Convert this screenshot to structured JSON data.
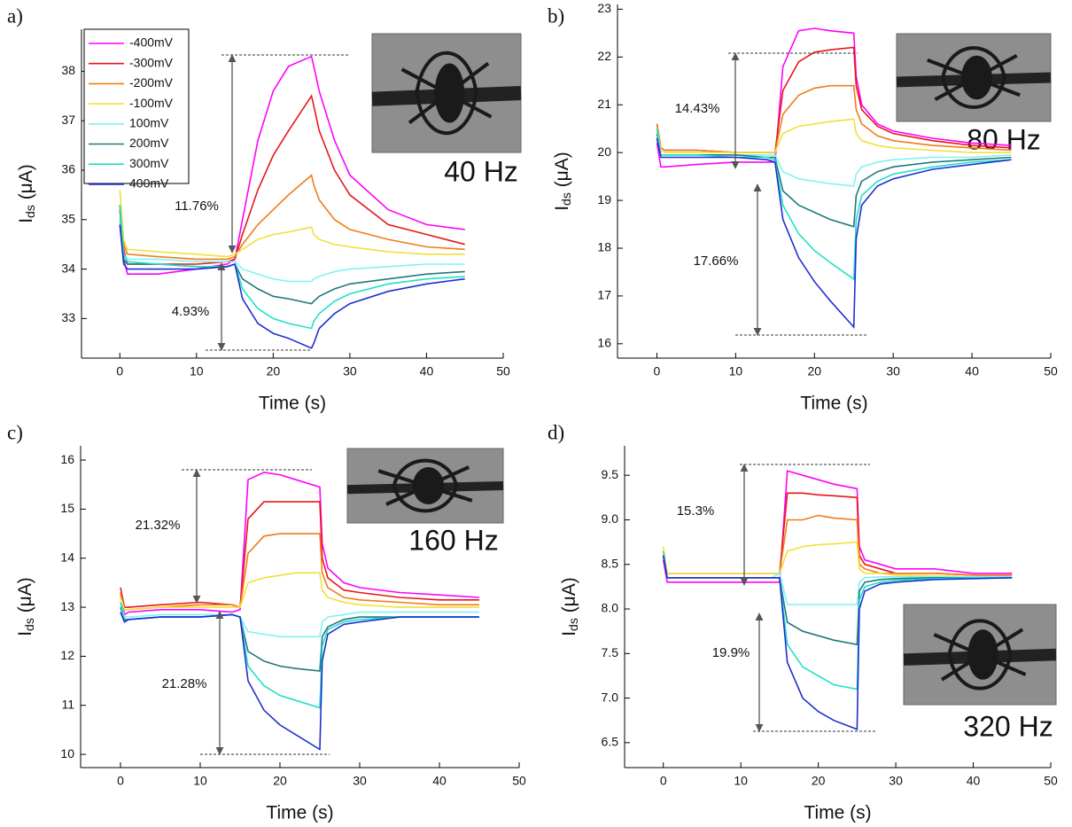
{
  "chart_data": [
    {
      "type": "line",
      "panel_label": "a)",
      "frequency": "40 Hz",
      "annotations": [
        "11.76%",
        "4.93%"
      ],
      "legend": "upper left",
      "xlabel": "Time (s)",
      "ylabel": [
        "I",
        "ds",
        " (μA)"
      ],
      "xlim": [
        -5,
        50
      ],
      "xticks": [
        0,
        10,
        20,
        30,
        40,
        50
      ],
      "ylim": [
        32.2,
        38.85
      ],
      "yticks": [
        33,
        34,
        35,
        36,
        37,
        38
      ],
      "x": [
        0,
        0.5,
        1,
        5,
        10,
        14,
        15,
        16,
        18,
        20,
        22,
        25,
        25.3,
        26,
        28,
        30,
        35,
        40,
        45
      ],
      "series": [
        {
          "name": "-400mV",
          "color": "#ff00ff",
          "values": [
            34.9,
            34.2,
            33.9,
            33.9,
            34.0,
            34.1,
            34.2,
            35.0,
            36.6,
            37.6,
            38.1,
            38.3,
            38.1,
            37.6,
            36.6,
            35.9,
            35.2,
            34.9,
            34.8
          ]
        },
        {
          "name": "-300mV",
          "color": "#e8161b",
          "values": [
            35.3,
            34.4,
            34.1,
            34.1,
            34.1,
            34.15,
            34.2,
            34.7,
            35.6,
            36.3,
            36.8,
            37.5,
            37.3,
            36.8,
            36.0,
            35.5,
            34.9,
            34.7,
            34.5
          ]
        },
        {
          "name": "-200mV",
          "color": "#f07c18",
          "values": [
            35.2,
            34.5,
            34.3,
            34.25,
            34.2,
            34.2,
            34.25,
            34.5,
            34.9,
            35.2,
            35.5,
            35.9,
            35.7,
            35.4,
            35.0,
            34.8,
            34.6,
            34.45,
            34.4
          ]
        },
        {
          "name": "-100mV",
          "color": "#f2e03a",
          "values": [
            35.6,
            34.6,
            34.4,
            34.35,
            34.3,
            34.25,
            34.3,
            34.4,
            34.6,
            34.7,
            34.75,
            34.85,
            34.7,
            34.6,
            34.5,
            34.45,
            34.35,
            34.3,
            34.3
          ]
        },
        {
          "name": "100mV",
          "color": "#80f2f2",
          "values": [
            35.0,
            34.3,
            34.2,
            34.2,
            34.15,
            34.15,
            34.15,
            34.0,
            33.9,
            33.8,
            33.75,
            33.75,
            33.8,
            33.85,
            33.95,
            34.0,
            34.05,
            34.1,
            34.1
          ]
        },
        {
          "name": "200mV",
          "color": "#1f7a78",
          "values": [
            35.2,
            34.2,
            34.1,
            34.1,
            34.05,
            34.05,
            34.1,
            33.8,
            33.6,
            33.45,
            33.4,
            33.3,
            33.35,
            33.45,
            33.6,
            33.7,
            33.8,
            33.9,
            33.95
          ]
        },
        {
          "name": "300mV",
          "color": "#1fe0c8",
          "values": [
            35.3,
            34.3,
            34.15,
            34.1,
            34.05,
            34.05,
            34.1,
            33.6,
            33.2,
            33.0,
            32.9,
            32.8,
            32.95,
            33.1,
            33.35,
            33.5,
            33.7,
            33.8,
            33.85
          ]
        },
        {
          "name": "400mV",
          "color": "#1f2fd0",
          "values": [
            34.9,
            34.1,
            34.0,
            34.0,
            34.0,
            34.05,
            34.1,
            33.4,
            32.9,
            32.7,
            32.6,
            32.4,
            32.5,
            32.8,
            33.1,
            33.3,
            33.55,
            33.7,
            33.8
          ]
        }
      ]
    },
    {
      "type": "line",
      "panel_label": "b)",
      "frequency": "80 Hz",
      "annotations": [
        "14.43%",
        "17.66%"
      ],
      "xlabel": "Time (s)",
      "ylabel": [
        "I",
        "ds",
        " (μA)"
      ],
      "xlim": [
        -5,
        50
      ],
      "xticks": [
        0,
        10,
        20,
        30,
        40,
        50
      ],
      "ylim": [
        15.7,
        23.1
      ],
      "yticks": [
        16,
        17,
        18,
        19,
        20,
        21,
        22,
        23
      ],
      "x": [
        0,
        0.5,
        1,
        5,
        10,
        14,
        15,
        16,
        18,
        20,
        22,
        25,
        25.3,
        26,
        28,
        30,
        35,
        40,
        45
      ],
      "series": [
        {
          "color": "#ff00ff",
          "values": [
            20.2,
            19.7,
            19.7,
            19.75,
            19.8,
            19.8,
            19.8,
            21.8,
            22.55,
            22.6,
            22.55,
            22.5,
            21.6,
            21.0,
            20.6,
            20.45,
            20.3,
            20.2,
            20.15
          ]
        },
        {
          "color": "#e8161b",
          "values": [
            20.6,
            20.1,
            20.05,
            20.05,
            20.0,
            20.0,
            20.0,
            21.3,
            21.9,
            22.1,
            22.15,
            22.2,
            21.4,
            20.9,
            20.55,
            20.4,
            20.25,
            20.15,
            20.1
          ]
        },
        {
          "color": "#f07c18",
          "values": [
            20.6,
            20.1,
            20.05,
            20.05,
            20.0,
            20.0,
            20.0,
            20.8,
            21.2,
            21.35,
            21.4,
            21.4,
            20.9,
            20.6,
            20.35,
            20.25,
            20.15,
            20.1,
            20.05
          ]
        },
        {
          "color": "#f2e03a",
          "values": [
            20.5,
            20.05,
            20.0,
            20.0,
            20.0,
            20.0,
            20.0,
            20.4,
            20.55,
            20.6,
            20.65,
            20.7,
            20.4,
            20.25,
            20.15,
            20.1,
            20.05,
            20.0,
            20.0
          ]
        },
        {
          "color": "#80f2f2",
          "values": [
            20.3,
            19.95,
            19.95,
            19.95,
            19.95,
            19.95,
            19.95,
            19.6,
            19.45,
            19.4,
            19.35,
            19.3,
            19.55,
            19.7,
            19.8,
            19.85,
            19.9,
            19.9,
            19.95
          ]
        },
        {
          "color": "#1f7a78",
          "values": [
            20.4,
            19.95,
            19.95,
            19.95,
            19.95,
            19.9,
            19.9,
            19.2,
            18.9,
            18.75,
            18.6,
            18.45,
            19.1,
            19.4,
            19.6,
            19.7,
            19.8,
            19.85,
            19.9
          ]
        },
        {
          "color": "#1fe0c8",
          "values": [
            20.5,
            19.95,
            19.95,
            19.95,
            19.9,
            19.9,
            19.85,
            18.9,
            18.3,
            17.95,
            17.7,
            17.35,
            18.6,
            19.1,
            19.4,
            19.55,
            19.7,
            19.8,
            19.85
          ]
        },
        {
          "color": "#1f2fd0",
          "values": [
            20.3,
            19.9,
            19.9,
            19.9,
            19.9,
            19.85,
            19.8,
            18.6,
            17.8,
            17.3,
            16.9,
            16.35,
            18.2,
            18.9,
            19.3,
            19.45,
            19.65,
            19.75,
            19.85
          ]
        }
      ]
    },
    {
      "type": "line",
      "panel_label": "c)",
      "frequency": "160 Hz",
      "annotations": [
        "21.32%",
        "21.28%"
      ],
      "xlabel": "Time (s)",
      "ylabel": [
        "I",
        "ds",
        " (μA)"
      ],
      "xlim": [
        -5,
        50
      ],
      "xticks": [
        0,
        10,
        20,
        30,
        40,
        50
      ],
      "ylim": [
        9.73,
        16.29
      ],
      "yticks": [
        10,
        11,
        12,
        13,
        14,
        15,
        16
      ],
      "x": [
        0,
        0.5,
        1,
        5,
        10,
        14,
        15,
        16,
        18,
        20,
        22,
        25,
        25.3,
        26,
        28,
        30,
        35,
        40,
        45
      ],
      "series": [
        {
          "color": "#ff00ff",
          "values": [
            13.3,
            12.85,
            12.9,
            12.95,
            12.95,
            12.9,
            12.95,
            15.6,
            15.75,
            15.7,
            15.6,
            15.45,
            14.3,
            13.8,
            13.5,
            13.4,
            13.3,
            13.25,
            13.2
          ]
        },
        {
          "color": "#e8161b",
          "values": [
            13.4,
            13.0,
            13.0,
            13.05,
            13.1,
            13.05,
            13.0,
            14.8,
            15.15,
            15.15,
            15.15,
            15.15,
            14.0,
            13.6,
            13.35,
            13.3,
            13.2,
            13.15,
            13.15
          ]
        },
        {
          "color": "#f07c18",
          "values": [
            13.3,
            12.95,
            12.95,
            13.0,
            13.05,
            13.05,
            13.0,
            14.1,
            14.45,
            14.5,
            14.5,
            14.5,
            13.7,
            13.4,
            13.2,
            13.15,
            13.1,
            13.05,
            13.05
          ]
        },
        {
          "color": "#f2e03a",
          "values": [
            13.2,
            12.95,
            12.95,
            13.0,
            13.0,
            13.0,
            13.0,
            13.5,
            13.6,
            13.65,
            13.7,
            13.7,
            13.35,
            13.2,
            13.1,
            13.05,
            13.0,
            13.0,
            13.0
          ]
        },
        {
          "color": "#80f2f2",
          "values": [
            13.1,
            12.8,
            12.8,
            12.85,
            12.85,
            12.85,
            12.8,
            12.5,
            12.45,
            12.4,
            12.4,
            12.4,
            12.7,
            12.8,
            12.85,
            12.9,
            12.9,
            12.9,
            12.9
          ]
        },
        {
          "color": "#1f7a78",
          "values": [
            13.0,
            12.75,
            12.75,
            12.8,
            12.8,
            12.85,
            12.8,
            12.1,
            11.9,
            11.8,
            11.75,
            11.7,
            12.4,
            12.6,
            12.75,
            12.8,
            12.8,
            12.8,
            12.8
          ]
        },
        {
          "color": "#1fe0c8",
          "values": [
            13.1,
            12.7,
            12.75,
            12.8,
            12.8,
            12.85,
            12.8,
            11.8,
            11.4,
            11.2,
            11.1,
            10.95,
            12.2,
            12.55,
            12.7,
            12.75,
            12.8,
            12.8,
            12.8
          ]
        },
        {
          "color": "#1f2fd0",
          "values": [
            12.9,
            12.7,
            12.75,
            12.8,
            12.8,
            12.85,
            12.8,
            11.5,
            10.9,
            10.6,
            10.4,
            10.1,
            11.9,
            12.45,
            12.65,
            12.7,
            12.8,
            12.8,
            12.8
          ]
        }
      ]
    },
    {
      "type": "line",
      "panel_label": "d)",
      "frequency": "320 Hz",
      "annotations": [
        "15.3%",
        "19.9%"
      ],
      "xlabel": "Time (s)",
      "ylabel": [
        "I",
        "ds",
        " (μA)"
      ],
      "xlim": [
        -5,
        50
      ],
      "xticks": [
        0,
        10,
        20,
        30,
        40,
        50
      ],
      "ylim": [
        6.22,
        9.83
      ],
      "yticks": [
        6.5,
        {
          "value": 7,
          "label": "7.0"
        },
        7.5,
        {
          "value": 8,
          "label": "8.0"
        },
        8.5,
        {
          "value": 9,
          "label": "9.0"
        },
        9.5
      ],
      "x": [
        0,
        0.5,
        1,
        5,
        10,
        14,
        15,
        16,
        18,
        20,
        22,
        25,
        25.3,
        26,
        28,
        30,
        35,
        40,
        45
      ],
      "series": [
        {
          "color": "#ff00ff",
          "values": [
            8.55,
            8.3,
            8.3,
            8.3,
            8.3,
            8.3,
            8.3,
            9.55,
            9.5,
            9.45,
            9.4,
            9.35,
            8.7,
            8.55,
            8.5,
            8.45,
            8.45,
            8.4,
            8.4
          ]
        },
        {
          "color": "#e8161b",
          "values": [
            8.6,
            8.4,
            8.4,
            8.4,
            8.4,
            8.4,
            8.4,
            9.3,
            9.3,
            9.28,
            9.27,
            9.25,
            8.6,
            8.5,
            8.45,
            8.4,
            8.4,
            8.38,
            8.38
          ]
        },
        {
          "color": "#f07c18",
          "values": [
            8.65,
            8.4,
            8.4,
            8.4,
            8.4,
            8.4,
            8.4,
            9.0,
            9.0,
            9.05,
            9.02,
            9.0,
            8.5,
            8.45,
            8.4,
            8.4,
            8.4,
            8.38,
            8.38
          ]
        },
        {
          "color": "#f2e03a",
          "values": [
            8.7,
            8.4,
            8.4,
            8.4,
            8.4,
            8.4,
            8.4,
            8.65,
            8.7,
            8.72,
            8.73,
            8.75,
            8.45,
            8.4,
            8.4,
            8.38,
            8.37,
            8.36,
            8.36
          ]
        },
        {
          "color": "#80f2f2",
          "values": [
            8.6,
            8.35,
            8.35,
            8.35,
            8.35,
            8.35,
            8.4,
            8.05,
            8.05,
            8.05,
            8.05,
            8.05,
            8.3,
            8.35,
            8.36,
            8.36,
            8.36,
            8.36,
            8.36
          ]
        },
        {
          "color": "#1f7a78",
          "values": [
            8.6,
            8.35,
            8.35,
            8.35,
            8.35,
            8.35,
            8.35,
            7.85,
            7.75,
            7.7,
            7.65,
            7.6,
            8.2,
            8.3,
            8.33,
            8.34,
            8.35,
            8.35,
            8.35
          ]
        },
        {
          "color": "#1fe0c8",
          "values": [
            8.65,
            8.35,
            8.35,
            8.35,
            8.35,
            8.35,
            8.35,
            7.6,
            7.35,
            7.25,
            7.15,
            7.1,
            8.1,
            8.25,
            8.3,
            8.32,
            8.34,
            8.35,
            8.35
          ]
        },
        {
          "color": "#1f2fd0",
          "values": [
            8.6,
            8.35,
            8.35,
            8.35,
            8.35,
            8.35,
            8.35,
            7.4,
            7.0,
            6.85,
            6.75,
            6.65,
            8.0,
            8.2,
            8.28,
            8.3,
            8.33,
            8.34,
            8.35
          ]
        }
      ]
    }
  ]
}
